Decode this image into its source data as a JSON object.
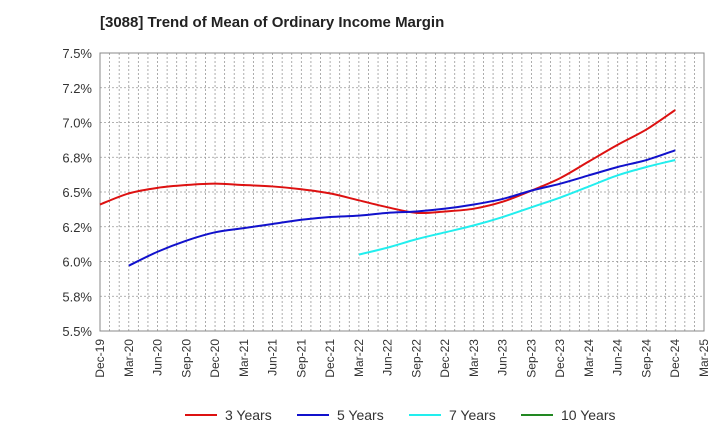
{
  "chart_data": {
    "type": "line",
    "title": "[3088]  Trend of Mean of Ordinary Income Margin",
    "xlabel": "",
    "ylabel": "",
    "x_ticks": [
      "Dec-19",
      "Mar-20",
      "Jun-20",
      "Sep-20",
      "Dec-20",
      "Mar-21",
      "Jun-21",
      "Sep-21",
      "Dec-21",
      "Mar-22",
      "Jun-22",
      "Sep-22",
      "Dec-22",
      "Mar-23",
      "Jun-23",
      "Sep-23",
      "Dec-23",
      "Mar-24",
      "Jun-24",
      "Sep-24",
      "Dec-24",
      "Mar-25"
    ],
    "y_ticks": [
      "5.5%",
      "5.8%",
      "6.0%",
      "6.2%",
      "6.5%",
      "6.8%",
      "7.0%",
      "7.2%",
      "7.5%"
    ],
    "ylim": [
      5.5,
      7.5
    ],
    "grid": true,
    "legend_position": "bottom",
    "series": [
      {
        "name": "3 Years",
        "color": "#dd1111",
        "x": [
          "Dec-19",
          "Mar-20",
          "Jun-20",
          "Sep-20",
          "Dec-20",
          "Mar-21",
          "Jun-21",
          "Sep-21",
          "Dec-21",
          "Mar-22",
          "Jun-22",
          "Sep-22",
          "Dec-22",
          "Mar-23",
          "Jun-23",
          "Sep-23",
          "Dec-23",
          "Mar-24",
          "Jun-24",
          "Sep-24",
          "Dec-24"
        ],
        "values": [
          6.41,
          6.49,
          6.53,
          6.55,
          6.56,
          6.55,
          6.54,
          6.52,
          6.49,
          6.44,
          6.39,
          6.35,
          6.36,
          6.38,
          6.43,
          6.51,
          6.6,
          6.72,
          6.84,
          6.95,
          7.09
        ]
      },
      {
        "name": "5 Years",
        "color": "#1111cc",
        "x": [
          "Mar-20",
          "Jun-20",
          "Sep-20",
          "Dec-20",
          "Mar-21",
          "Jun-21",
          "Sep-21",
          "Dec-21",
          "Mar-22",
          "Jun-22",
          "Sep-22",
          "Dec-22",
          "Mar-23",
          "Jun-23",
          "Sep-23",
          "Dec-23",
          "Mar-24",
          "Jun-24",
          "Sep-24",
          "Dec-24"
        ],
        "values": [
          5.97,
          6.07,
          6.15,
          6.21,
          6.24,
          6.27,
          6.3,
          6.32,
          6.33,
          6.35,
          6.36,
          6.38,
          6.41,
          6.45,
          6.51,
          6.56,
          6.62,
          6.68,
          6.73,
          6.8
        ]
      },
      {
        "name": "7 Years",
        "color": "#22eeee",
        "x": [
          "Mar-22",
          "Jun-22",
          "Sep-22",
          "Dec-22",
          "Mar-23",
          "Jun-23",
          "Sep-23",
          "Dec-23",
          "Mar-24",
          "Jun-24",
          "Sep-24",
          "Dec-24"
        ],
        "values": [
          6.05,
          6.1,
          6.16,
          6.21,
          6.26,
          6.32,
          6.39,
          6.46,
          6.54,
          6.62,
          6.68,
          6.73
        ]
      },
      {
        "name": "10 Years",
        "color": "#228822",
        "x": [],
        "values": []
      }
    ]
  }
}
